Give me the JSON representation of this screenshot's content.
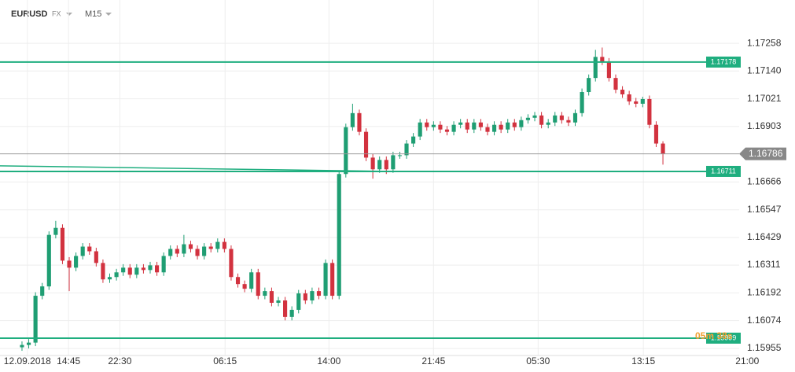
{
  "chart_data": {
    "type": "candlestick",
    "symbol": "EURUSD",
    "market": "FX",
    "timeframe": "M15",
    "countdown": "05m 38s",
    "up_color": "#1f9e73",
    "down_color": "#d2323f",
    "level_color": "#1fae7f",
    "grid": true,
    "open": [
      1.1596,
      1.1597,
      1.1598,
      1.1618,
      1.1622,
      1.1644,
      1.1647,
      1.1633,
      1.163,
      1.1635,
      1.1639,
      1.1637,
      1.1632,
      1.1625,
      1.1626,
      1.1628,
      1.163,
      1.1627,
      1.163,
      1.1629,
      1.1631,
      1.1628,
      1.1635,
      1.1638,
      1.1636,
      1.164,
      1.1638,
      1.1635,
      1.1639,
      1.1638,
      1.1641,
      1.1638,
      1.1626,
      1.1623,
      1.1621,
      1.1628,
      1.1618,
      1.162,
      1.1615,
      1.1616,
      1.1609,
      1.1612,
      1.1619,
      1.1616,
      1.162,
      1.1618,
      1.1632,
      1.1618,
      1.167,
      1.169,
      1.1696,
      1.1688,
      1.1677,
      1.1672,
      1.1676,
      1.1672,
      1.1678,
      1.1678,
      1.1683,
      1.1686,
      1.1692,
      1.169,
      1.1691,
      1.1689,
      1.1688,
      1.1691,
      1.1692,
      1.1689,
      1.1692,
      1.169,
      1.1688,
      1.1691,
      1.1689,
      1.1692,
      1.169,
      1.1693,
      1.1694,
      1.1695,
      1.1691,
      1.1692,
      1.1695,
      1.1693,
      1.1692,
      1.1696,
      1.1705,
      1.1711,
      1.172,
      1.1718,
      1.1711,
      1.1706,
      1.1704,
      1.1701,
      1.17,
      1.1702,
      1.1691,
      1.1683
    ],
    "high": [
      1.15985,
      1.15995,
      1.16195,
      1.16235,
      1.16455,
      1.165,
      1.16485,
      1.16345,
      1.16365,
      1.16405,
      1.16405,
      1.16385,
      1.16335,
      1.16275,
      1.16295,
      1.16315,
      1.16315,
      1.16315,
      1.16315,
      1.16325,
      1.16325,
      1.16365,
      1.16395,
      1.16395,
      1.1644,
      1.16415,
      1.16395,
      1.16405,
      1.16405,
      1.16425,
      1.16425,
      1.16395,
      1.16275,
      1.16245,
      1.16295,
      1.16295,
      1.16215,
      1.16215,
      1.16175,
      1.16175,
      1.16135,
      1.16205,
      1.16205,
      1.16215,
      1.16215,
      1.16335,
      1.16335,
      1.16715,
      1.16915,
      1.17,
      1.16975,
      1.16895,
      1.16785,
      1.16775,
      1.16775,
      1.16795,
      1.16795,
      1.16845,
      1.16875,
      1.16935,
      1.16935,
      1.16925,
      1.16925,
      1.16905,
      1.16925,
      1.16935,
      1.16935,
      1.16935,
      1.16935,
      1.16915,
      1.16925,
      1.16925,
      1.16935,
      1.16935,
      1.16945,
      1.16955,
      1.16965,
      1.16965,
      1.16935,
      1.16965,
      1.16965,
      1.16945,
      1.16975,
      1.17065,
      1.17125,
      1.1723,
      1.1724,
      1.17195,
      1.17125,
      1.17075,
      1.17055,
      1.17025,
      1.1703,
      1.17035,
      1.16925,
      1.1684
    ],
    "low": [
      1.15945,
      1.15955,
      1.15965,
      1.16165,
      1.16205,
      1.16425,
      1.16315,
      1.162,
      1.16285,
      1.16335,
      1.16355,
      1.16305,
      1.16235,
      1.16235,
      1.16245,
      1.16265,
      1.16255,
      1.16255,
      1.16275,
      1.16275,
      1.16265,
      1.16265,
      1.16335,
      1.16345,
      1.16345,
      1.16365,
      1.16335,
      1.16335,
      1.16365,
      1.16365,
      1.16365,
      1.16245,
      1.16215,
      1.16195,
      1.16195,
      1.16165,
      1.16165,
      1.16135,
      1.16135,
      1.16075,
      1.16075,
      1.16105,
      1.16145,
      1.16145,
      1.16165,
      1.16165,
      1.16165,
      1.16165,
      1.16685,
      1.16885,
      1.16865,
      1.16755,
      1.1668,
      1.16705,
      1.167,
      1.16705,
      1.16765,
      1.16765,
      1.16815,
      1.16845,
      1.16885,
      1.16885,
      1.16875,
      1.16865,
      1.16865,
      1.16895,
      1.16875,
      1.16875,
      1.16885,
      1.16865,
      1.16865,
      1.16875,
      1.16875,
      1.16885,
      1.16885,
      1.16915,
      1.16925,
      1.16895,
      1.16895,
      1.16905,
      1.16915,
      1.16905,
      1.16905,
      1.16945,
      1.17035,
      1.17095,
      1.17165,
      1.17095,
      1.17045,
      1.17025,
      1.16995,
      1.16985,
      1.16985,
      1.16895,
      1.16815,
      1.1674
    ],
    "close": [
      1.1597,
      1.1598,
      1.1618,
      1.1622,
      1.1644,
      1.1647,
      1.1633,
      1.163,
      1.1635,
      1.1639,
      1.1637,
      1.1632,
      1.1625,
      1.1626,
      1.1628,
      1.163,
      1.1627,
      1.163,
      1.1629,
      1.1631,
      1.1628,
      1.1635,
      1.1638,
      1.1636,
      1.164,
      1.1638,
      1.1635,
      1.1639,
      1.1638,
      1.1641,
      1.1638,
      1.1626,
      1.1623,
      1.1621,
      1.1628,
      1.1618,
      1.162,
      1.1615,
      1.1616,
      1.1609,
      1.1612,
      1.1619,
      1.1616,
      1.162,
      1.1618,
      1.1632,
      1.1618,
      1.167,
      1.169,
      1.1696,
      1.1688,
      1.1677,
      1.1672,
      1.1676,
      1.1672,
      1.1678,
      1.1678,
      1.1683,
      1.1686,
      1.1692,
      1.169,
      1.1691,
      1.1689,
      1.1688,
      1.1691,
      1.1692,
      1.1689,
      1.1692,
      1.169,
      1.1688,
      1.1691,
      1.1689,
      1.1692,
      1.169,
      1.1693,
      1.1694,
      1.1695,
      1.1691,
      1.1692,
      1.1695,
      1.1693,
      1.1692,
      1.1696,
      1.1705,
      1.1711,
      1.172,
      1.1718,
      1.1711,
      1.1706,
      1.1704,
      1.1701,
      1.17,
      1.1702,
      1.1691,
      1.1683,
      1.16786
    ],
    "levels": [
      1.17178,
      1.16711,
      1.15999
    ],
    "last_price": 1.16786,
    "trend_line": [
      1.16735,
      1.16711
    ],
    "ylim": [
      1.15925,
      1.17443
    ],
    "yticks": [
      1.17258,
      {
        "value": 1.1714,
        "label": "1.17140"
      },
      1.17021,
      1.16903,
      1.16666,
      1.16547,
      1.16429,
      1.16311,
      1.16192,
      1.16074,
      1.15955
    ],
    "xlim": [
      -3.26,
      106.3
    ],
    "xticks": [
      {
        "value": 0.8,
        "label": "12.09.2018"
      },
      {
        "value": 6.9,
        "label": "14:45"
      },
      {
        "value": 14.5,
        "label": "22:30"
      },
      {
        "value": 30.1,
        "label": "06:15"
      },
      {
        "value": 45.5,
        "label": "14:00"
      },
      {
        "value": 61,
        "label": "21:45"
      },
      {
        "value": 76.5,
        "label": "05:30"
      },
      {
        "value": 92.1,
        "label": "13:15"
      },
      {
        "value": 107.5,
        "label": "21:00"
      }
    ]
  }
}
